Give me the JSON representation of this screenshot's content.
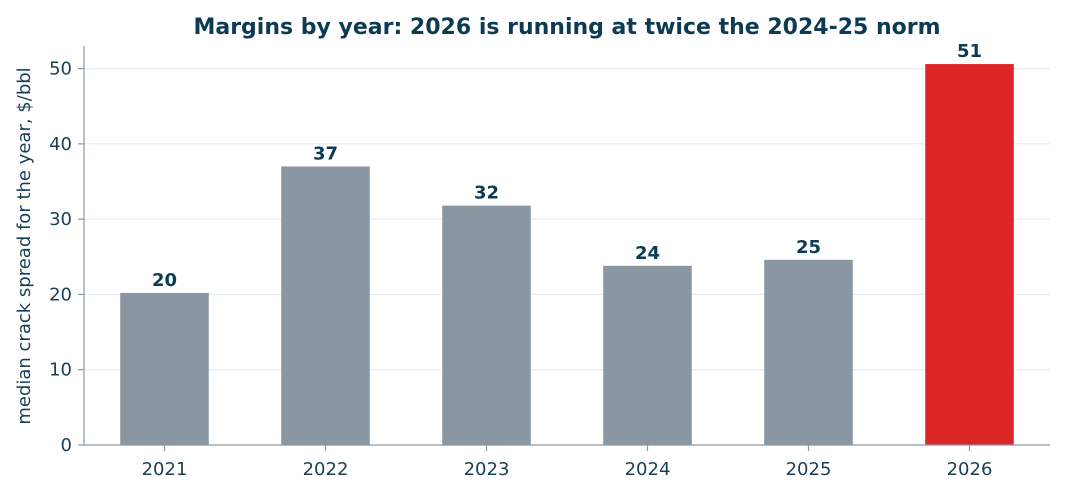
{
  "chart_data": {
    "type": "bar",
    "title": "Margins by year: 2026 is running at twice the 2024-25 norm",
    "ylabel": "median crack spread for the year, $/bbl",
    "xlabel": "",
    "categories": [
      "2021",
      "2022",
      "2023",
      "2024",
      "2025",
      "2026"
    ],
    "values": [
      20.2,
      37.0,
      31.8,
      23.8,
      24.6,
      50.6
    ],
    "data_labels": [
      "20",
      "37",
      "32",
      "24",
      "25",
      "51"
    ],
    "ylim": [
      0,
      53
    ],
    "yticks": [
      0,
      10,
      20,
      30,
      40,
      50
    ],
    "grid": "horizontal",
    "highlight_category": "2026",
    "colors": {
      "bar": "#8a97a2",
      "highlight": "#dc2626",
      "text": "#0d3b54",
      "grid": "#e3e8eb"
    }
  }
}
